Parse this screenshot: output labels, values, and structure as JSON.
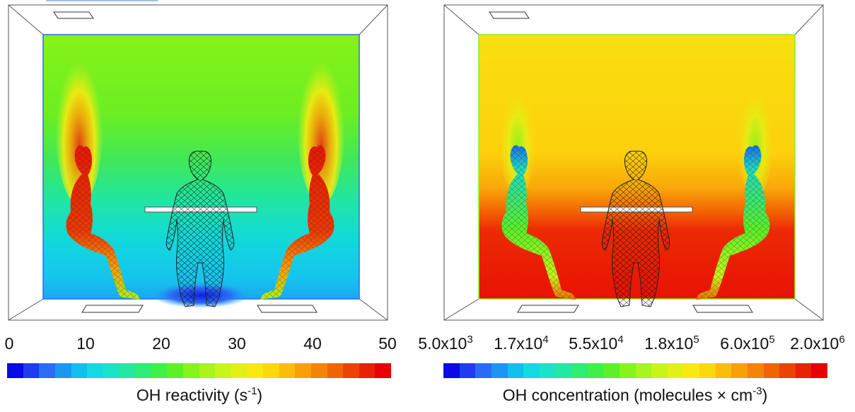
{
  "left_panel": {
    "quantity": "OH reactivity",
    "colorbar": {
      "ticks": [
        {
          "base": "0",
          "exp": ""
        },
        {
          "base": "10",
          "exp": ""
        },
        {
          "base": "20",
          "exp": ""
        },
        {
          "base": "30",
          "exp": ""
        },
        {
          "base": "40",
          "exp": ""
        },
        {
          "base": "50",
          "exp": ""
        }
      ],
      "label": {
        "prefix": "OH reactivity (s",
        "exp": "-1",
        "suffix": ")"
      }
    }
  },
  "right_panel": {
    "quantity": "OH concentration",
    "colorbar": {
      "ticks": [
        {
          "base": "5.0x10",
          "exp": "3"
        },
        {
          "base": "1.7x10",
          "exp": "4"
        },
        {
          "base": "5.5x10",
          "exp": "4"
        },
        {
          "base": "1.8x10",
          "exp": "5"
        },
        {
          "base": "6.0x10",
          "exp": "5"
        },
        {
          "base": "2.0x10",
          "exp": "6"
        }
      ],
      "label": {
        "prefix": "OH concentration (molecules × cm",
        "exp": "-3",
        "suffix": ")"
      }
    }
  },
  "colormap": [
    "#0a0ae6",
    "#1f3cf2",
    "#2a6cf5",
    "#1c96f2",
    "#10bfec",
    "#12d9e2",
    "#1ae3c8",
    "#22e8a2",
    "#2eec74",
    "#3ef048",
    "#5cf028",
    "#84f41a",
    "#a8f41c",
    "#c8f41a",
    "#e2f016",
    "#f6ea10",
    "#fcd80c",
    "#fcbc0a",
    "#f8a008",
    "#f48408",
    "#f06406",
    "#ec4204",
    "#e82202",
    "#e80004"
  ]
}
